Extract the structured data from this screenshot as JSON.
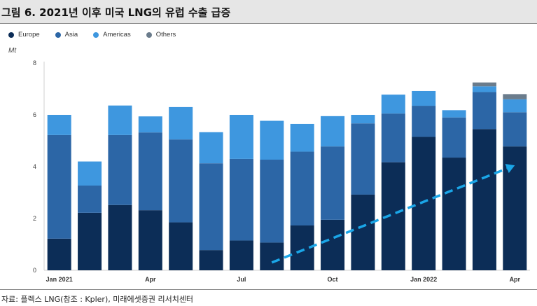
{
  "header": {
    "title": "그림 6. 2021년 이후 미국 LNG의 유럽 수출 급증"
  },
  "source": "자료: 플렉스 LNG(참조 : Kpler), 미래에셋증권 리서치센터",
  "colors": {
    "Europe": "#0c2d57",
    "Asia": "#2c66a6",
    "Americas": "#3e97df",
    "Others": "#6b7c8c",
    "trend_arrow": "#1aa6e8"
  },
  "chart_data": {
    "type": "bar",
    "stacked": true,
    "unit": "Mt",
    "categories": [
      "Jan 2021",
      "Feb 2021",
      "Mar 2021",
      "Apr 2021",
      "May 2021",
      "Jun 2021",
      "Jul 2021",
      "Aug 2021",
      "Sep 2021",
      "Oct 2021",
      "Nov 2021",
      "Dec 2021",
      "Jan 2022",
      "Feb 2022",
      "Mar 2022",
      "Apr 2022"
    ],
    "tick_labels": [
      {
        "index": 0,
        "label": "Jan 2021"
      },
      {
        "index": 3,
        "label": "Apr"
      },
      {
        "index": 6,
        "label": "Jul"
      },
      {
        "index": 9,
        "label": "Oct"
      },
      {
        "index": 12,
        "label": "Jan 2022"
      },
      {
        "index": 15,
        "label": "Apr"
      }
    ],
    "series": [
      {
        "name": "Europe",
        "values": [
          1.22,
          2.22,
          2.52,
          2.32,
          1.85,
          0.78,
          1.15,
          1.07,
          1.73,
          1.95,
          2.92,
          4.17,
          5.15,
          4.35,
          5.45,
          4.78
        ]
      },
      {
        "name": "Asia",
        "values": [
          4.0,
          1.05,
          2.7,
          3.0,
          3.2,
          3.35,
          3.15,
          3.2,
          2.85,
          2.83,
          2.75,
          1.88,
          1.2,
          1.55,
          1.43,
          1.32
        ]
      },
      {
        "name": "Americas",
        "values": [
          0.78,
          0.93,
          1.14,
          0.62,
          1.25,
          1.2,
          1.7,
          1.5,
          1.07,
          1.17,
          0.33,
          0.73,
          0.57,
          0.28,
          0.22,
          0.5
        ]
      },
      {
        "name": "Others",
        "values": [
          0,
          0,
          0,
          0,
          0,
          0,
          0,
          0,
          0,
          0,
          0,
          0,
          0,
          0,
          0.15,
          0.2
        ]
      }
    ],
    "ylim": [
      0,
      8
    ],
    "yticks": [
      0,
      2,
      4,
      6,
      8
    ],
    "xlabel": "",
    "ylabel": "Mt",
    "legend_position": "top-left",
    "grid": false,
    "annotations": [
      {
        "type": "dashed-arrow",
        "from": {
          "x_index": 7,
          "y": 0.3
        },
        "to": {
          "x_index": 15,
          "y": 4.05
        }
      }
    ]
  }
}
